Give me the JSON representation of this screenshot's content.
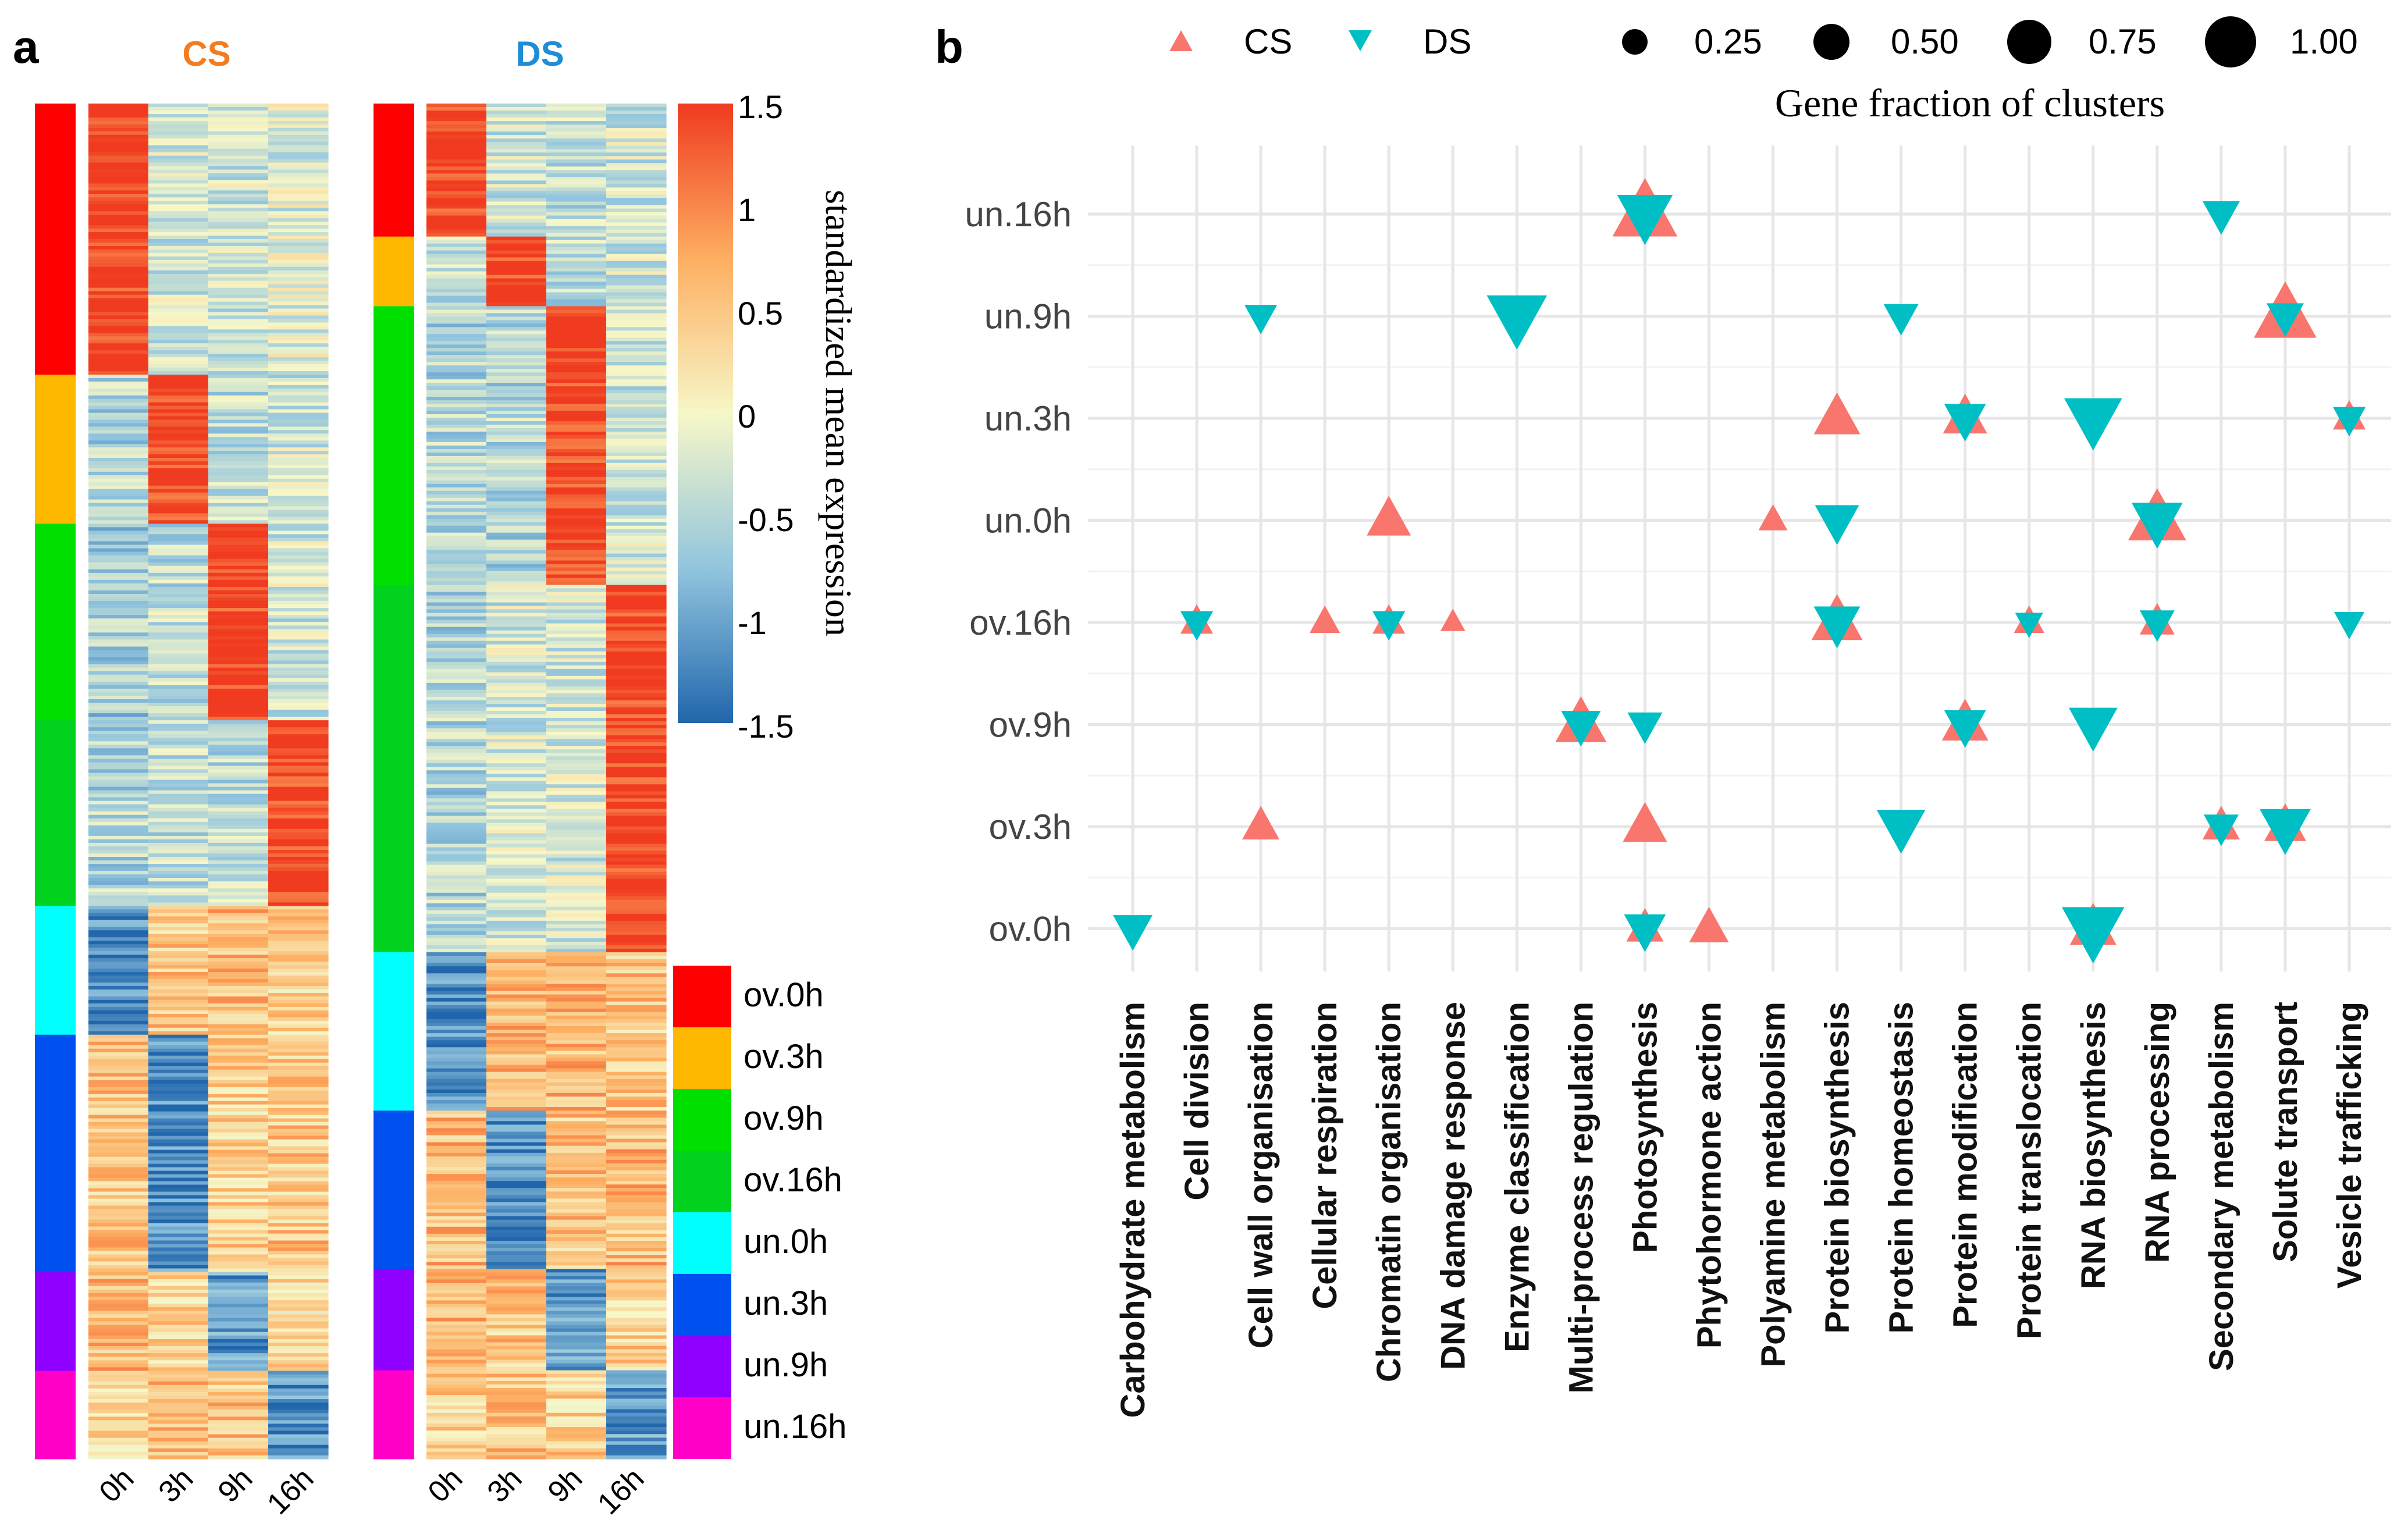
{
  "panel_a": {
    "label": "a",
    "cs_title": "CS",
    "ds_title": "DS",
    "cs_color": "#f47c20",
    "ds_color": "#1f8dd6",
    "columns": [
      "0h",
      "3h",
      "9h",
      "16h"
    ],
    "colorbar": {
      "title": "standardized mean expression",
      "ticks": [
        "1.5",
        "1",
        "0.5",
        "0",
        "-0.5",
        "-1",
        "-1.5"
      ],
      "values": [
        1.5,
        1,
        0.5,
        0,
        -0.5,
        -1,
        -1.5
      ],
      "range": [
        -1.5,
        1.5
      ],
      "colors": [
        "#2166ac",
        "#92c5de",
        "#f7f7c8",
        "#fdae61",
        "#f03b20"
      ]
    },
    "cluster_legend": [
      {
        "label": "ov.0h",
        "color": "#ff0000"
      },
      {
        "label": "ov.3h",
        "color": "#ffb800"
      },
      {
        "label": "ov.9h",
        "color": "#00e000"
      },
      {
        "label": "ov.16h",
        "color": "#00d21e"
      },
      {
        "label": "un.0h",
        "color": "#00ffff"
      },
      {
        "label": "un.3h",
        "color": "#0050f0"
      },
      {
        "label": "un.9h",
        "color": "#9000ff"
      },
      {
        "label": "un.16h",
        "color": "#ff00c8"
      }
    ],
    "cs_clusters": [
      {
        "cluster": "ov.0h",
        "color": "#ff0000",
        "fraction": 0.2,
        "pattern": [
          1.5,
          -0.3,
          -0.3,
          -0.2
        ]
      },
      {
        "cluster": "ov.3h",
        "color": "#ffb800",
        "fraction": 0.11,
        "pattern": [
          -0.5,
          1.5,
          -0.4,
          -0.3
        ]
      },
      {
        "cluster": "ov.9h",
        "color": "#00e000",
        "fraction": 0.145,
        "pattern": [
          -0.6,
          -0.4,
          1.5,
          -0.3
        ]
      },
      {
        "cluster": "ov.16h",
        "color": "#00d21e",
        "fraction": 0.137,
        "pattern": [
          -0.5,
          -0.4,
          -0.4,
          1.5
        ]
      },
      {
        "cluster": "un.0h",
        "color": "#00ffff",
        "fraction": 0.095,
        "pattern": [
          -1.2,
          0.5,
          0.6,
          0.4
        ]
      },
      {
        "cluster": "un.3h",
        "color": "#0050f0",
        "fraction": 0.175,
        "pattern": [
          0.5,
          -1.2,
          0.4,
          0.5
        ]
      },
      {
        "cluster": "un.9h",
        "color": "#9000ff",
        "fraction": 0.073,
        "pattern": [
          0.6,
          0.4,
          -1.1,
          0.3
        ]
      },
      {
        "cluster": "un.16h",
        "color": "#ff00c8",
        "fraction": 0.065,
        "pattern": [
          0.3,
          0.6,
          0.5,
          -1.1
        ]
      }
    ],
    "ds_clusters": [
      {
        "cluster": "ov.0h",
        "color": "#ff0000",
        "fraction": 0.105,
        "pattern": [
          1.5,
          -0.3,
          -0.4,
          -0.3
        ]
      },
      {
        "cluster": "ov.3h",
        "color": "#ffb800",
        "fraction": 0.055,
        "pattern": [
          -0.4,
          1.5,
          -0.4,
          -0.3
        ]
      },
      {
        "cluster": "ov.9h",
        "color": "#00e000",
        "fraction": 0.22,
        "pattern": [
          -0.5,
          -0.5,
          1.5,
          -0.3
        ]
      },
      {
        "cluster": "ov.16h",
        "color": "#00d21e",
        "fraction": 0.29,
        "pattern": [
          -0.5,
          -0.3,
          -0.3,
          1.5
        ]
      },
      {
        "cluster": "un.0h",
        "color": "#00ffff",
        "fraction": 0.125,
        "pattern": [
          -1.2,
          0.6,
          0.6,
          0.5
        ]
      },
      {
        "cluster": "un.3h",
        "color": "#0050f0",
        "fraction": 0.125,
        "pattern": [
          0.6,
          -1.2,
          0.5,
          0.6
        ]
      },
      {
        "cluster": "un.9h",
        "color": "#9000ff",
        "fraction": 0.08,
        "pattern": [
          0.6,
          0.5,
          -1.1,
          0.4
        ]
      },
      {
        "cluster": "un.16h",
        "color": "#ff00c8",
        "fraction": 0.07,
        "pattern": [
          0.4,
          0.5,
          0.4,
          -1.1
        ]
      }
    ]
  },
  "chart_data": {
    "type": "scatter",
    "panel_label": "b",
    "title": "Gene fraction of clusters",
    "xlabel": "",
    "ylabel": "",
    "grid": true,
    "legend_placement": "top",
    "legend_shape": [
      {
        "label": "CS",
        "marker": "triangle-up",
        "color": "#f8766d"
      },
      {
        "label": "DS",
        "marker": "triangle-down",
        "color": "#00bfc4"
      }
    ],
    "legend_size": {
      "labels": [
        "0.25",
        "0.50",
        "0.75",
        "1.00"
      ],
      "values": [
        0.25,
        0.5,
        0.75,
        1.0
      ]
    },
    "size_range": [
      0,
      1
    ],
    "x_categories": [
      "Carbohydrate metabolism",
      "Cell division",
      "Cell wall organisation",
      "Cellular respiration",
      "Chromatin organisation",
      "DNA damage response",
      "Enzyme classification",
      "Multi-process regulation",
      "Photosynthesis",
      "Phytohormone action",
      "Polyamine metabolism",
      "Protein biosynthesis",
      "Protein homeostasis",
      "Protein modification",
      "Protein translocation",
      "RNA biosynthesis",
      "RNA processing",
      "Secondary metabolism",
      "Solute transport",
      "Vesicle trafficking"
    ],
    "y_categories": [
      "un.16h",
      "un.9h",
      "un.3h",
      "un.0h",
      "ov.16h",
      "ov.9h",
      "ov.3h",
      "ov.0h"
    ],
    "series": [
      {
        "name": "CS",
        "marker": "triangle-up",
        "color": "#f8766d",
        "points": [
          {
            "x": "Photosynthesis",
            "y": "un.16h",
            "size": 1.0
          },
          {
            "x": "Solute transport",
            "y": "un.9h",
            "size": 0.95
          },
          {
            "x": "Protein biosynthesis",
            "y": "un.3h",
            "size": 0.6
          },
          {
            "x": "Protein modification",
            "y": "un.3h",
            "size": 0.55
          },
          {
            "x": "Vesicle trafficking",
            "y": "un.3h",
            "size": 0.3
          },
          {
            "x": "Chromatin organisation",
            "y": "un.0h",
            "size": 0.55
          },
          {
            "x": "Polyamine metabolism",
            "y": "un.0h",
            "size": 0.22
          },
          {
            "x": "RNA processing",
            "y": "un.0h",
            "size": 0.85
          },
          {
            "x": "Cell division",
            "y": "ov.16h",
            "size": 0.3
          },
          {
            "x": "Cellular respiration",
            "y": "ov.16h",
            "size": 0.25
          },
          {
            "x": "Chromatin organisation",
            "y": "ov.16h",
            "size": 0.3
          },
          {
            "x": "DNA damage response",
            "y": "ov.16h",
            "size": 0.13
          },
          {
            "x": "Protein biosynthesis",
            "y": "ov.16h",
            "size": 0.7
          },
          {
            "x": "Protein translocation",
            "y": "ov.16h",
            "size": 0.25
          },
          {
            "x": "RNA processing",
            "y": "ov.16h",
            "size": 0.35
          },
          {
            "x": "Multi-process regulation",
            "y": "ov.9h",
            "size": 0.7
          },
          {
            "x": "Protein modification",
            "y": "ov.9h",
            "size": 0.6
          },
          {
            "x": "Cell wall organisation",
            "y": "ov.3h",
            "size": 0.4
          },
          {
            "x": "Photosynthesis",
            "y": "ov.3h",
            "size": 0.55
          },
          {
            "x": "Secondary metabolism",
            "y": "ov.3h",
            "size": 0.4
          },
          {
            "x": "Solute transport",
            "y": "ov.3h",
            "size": 0.5
          },
          {
            "x": "Photosynthesis",
            "y": "ov.0h",
            "size": 0.4
          },
          {
            "x": "Phytohormone action",
            "y": "ov.0h",
            "size": 0.45
          },
          {
            "x": "RNA biosynthesis",
            "y": "ov.0h",
            "size": 0.6
          }
        ]
      },
      {
        "name": "DS",
        "marker": "triangle-down",
        "color": "#00bfc4",
        "points": [
          {
            "x": "Photosynthesis",
            "y": "un.16h",
            "size": 0.8
          },
          {
            "x": "Secondary metabolism",
            "y": "un.16h",
            "size": 0.4
          },
          {
            "x": "Cell wall organisation",
            "y": "un.9h",
            "size": 0.3
          },
          {
            "x": "Enzyme classification",
            "y": "un.9h",
            "size": 0.9
          },
          {
            "x": "Protein homeostasis",
            "y": "un.9h",
            "size": 0.35
          },
          {
            "x": "Solute transport",
            "y": "un.9h",
            "size": 0.4
          },
          {
            "x": "Protein modification",
            "y": "un.3h",
            "size": 0.5
          },
          {
            "x": "RNA biosynthesis",
            "y": "un.3h",
            "size": 0.85
          },
          {
            "x": "Vesicle trafficking",
            "y": "un.3h",
            "size": 0.3
          },
          {
            "x": "Protein biosynthesis",
            "y": "un.0h",
            "size": 0.55
          },
          {
            "x": "RNA processing",
            "y": "un.0h",
            "size": 0.7
          },
          {
            "x": "Cell division",
            "y": "ov.16h",
            "size": 0.3
          },
          {
            "x": "Chromatin organisation",
            "y": "ov.16h",
            "size": 0.3
          },
          {
            "x": "Protein biosynthesis",
            "y": "ov.16h",
            "size": 0.6
          },
          {
            "x": "Protein translocation",
            "y": "ov.16h",
            "size": 0.2
          },
          {
            "x": "RNA processing",
            "y": "ov.16h",
            "size": 0.35
          },
          {
            "x": "Vesicle trafficking",
            "y": "ov.16h",
            "size": 0.25
          },
          {
            "x": "Multi-process regulation",
            "y": "ov.9h",
            "size": 0.45
          },
          {
            "x": "Photosynthesis",
            "y": "ov.9h",
            "size": 0.35
          },
          {
            "x": "Protein modification",
            "y": "ov.9h",
            "size": 0.5
          },
          {
            "x": "RNA biosynthesis",
            "y": "ov.9h",
            "size": 0.65
          },
          {
            "x": "Protein homeostasis",
            "y": "ov.3h",
            "size": 0.65
          },
          {
            "x": "Secondary metabolism",
            "y": "ov.3h",
            "size": 0.35
          },
          {
            "x": "Solute transport",
            "y": "ov.3h",
            "size": 0.7
          },
          {
            "x": "Carbohydrate metabolism",
            "y": "ov.0h",
            "size": 0.45
          },
          {
            "x": "Photosynthesis",
            "y": "ov.0h",
            "size": 0.5
          },
          {
            "x": "RNA biosynthesis",
            "y": "ov.0h",
            "size": 0.95
          }
        ]
      }
    ]
  }
}
